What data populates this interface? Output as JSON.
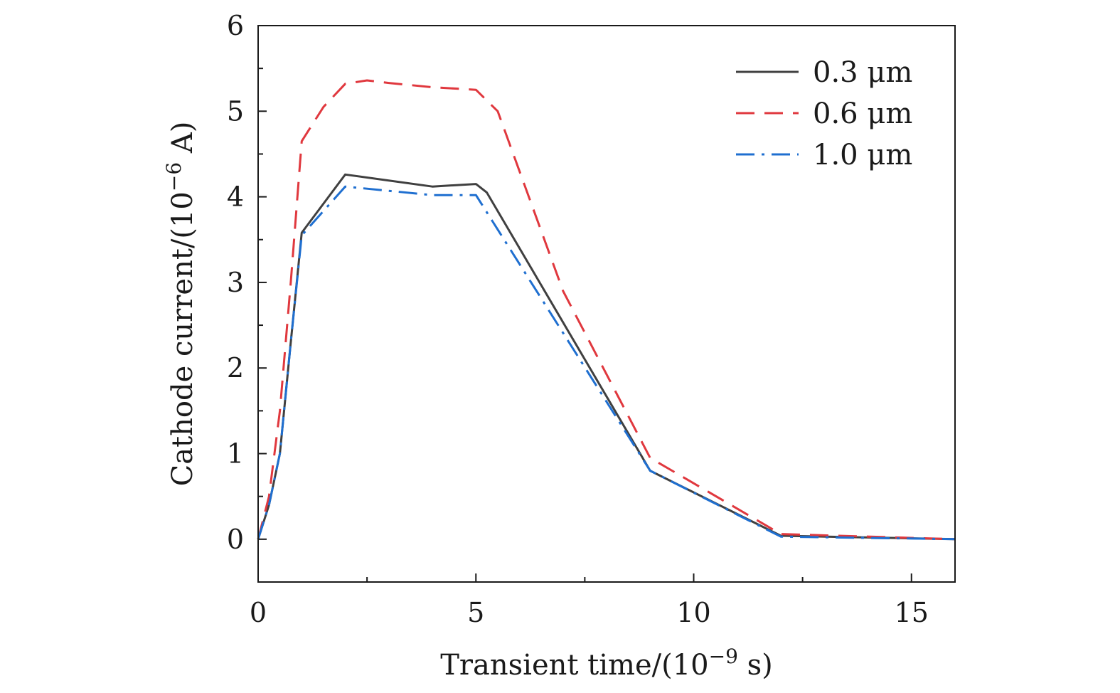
{
  "chart_data": {
    "type": "line",
    "xlabel": "Transient time/(10",
    "xlabel_exp": "−9",
    "xlabel_tail": " s)",
    "ylabel": "Cathode current/(10",
    "ylabel_exp": "−6",
    "ylabel_tail": " A)",
    "xlim": [
      0,
      16
    ],
    "ylim": [
      -0.5,
      6
    ],
    "xticks": [
      0,
      5,
      10,
      15
    ],
    "xminor": [
      2.5,
      7.5,
      12.5
    ],
    "yticks": [
      0,
      1,
      2,
      3,
      4,
      5,
      6
    ],
    "yminor": [
      -0.5,
      0.5,
      1.5,
      2.5,
      3.5,
      4.5,
      5.5
    ],
    "grid": false,
    "legend_position": "top-right",
    "series": [
      {
        "name": "0.3 μm",
        "color": "#404040",
        "style": "solid",
        "x": [
          0,
          0.25,
          0.5,
          0.75,
          1.0,
          2.0,
          4.0,
          5.0,
          5.25,
          9.0,
          12.0,
          16.0
        ],
        "y": [
          0,
          0.4,
          1.0,
          2.3,
          3.58,
          4.26,
          4.12,
          4.15,
          4.05,
          0.8,
          0.04,
          0.0
        ]
      },
      {
        "name": "0.6 μm",
        "color": "#e0383e",
        "style": "dashed",
        "x": [
          0,
          0.25,
          0.5,
          0.75,
          1.0,
          1.5,
          2.0,
          2.5,
          3.0,
          4.0,
          5.0,
          5.5,
          7.0,
          9.0,
          12.0,
          16.0
        ],
        "y": [
          0,
          0.5,
          1.5,
          3.0,
          4.65,
          5.05,
          5.32,
          5.36,
          5.33,
          5.28,
          5.25,
          5.0,
          2.9,
          0.95,
          0.06,
          0.0
        ]
      },
      {
        "name": "1.0 μm",
        "color": "#1f6fd0",
        "style": "dashdot",
        "x": [
          0,
          0.25,
          0.5,
          0.75,
          1.0,
          2.0,
          4.0,
          5.0,
          9.0,
          12.0,
          16.0
        ],
        "y": [
          0,
          0.4,
          1.0,
          2.3,
          3.55,
          4.12,
          4.02,
          4.02,
          0.8,
          0.03,
          0.0
        ]
      }
    ]
  }
}
